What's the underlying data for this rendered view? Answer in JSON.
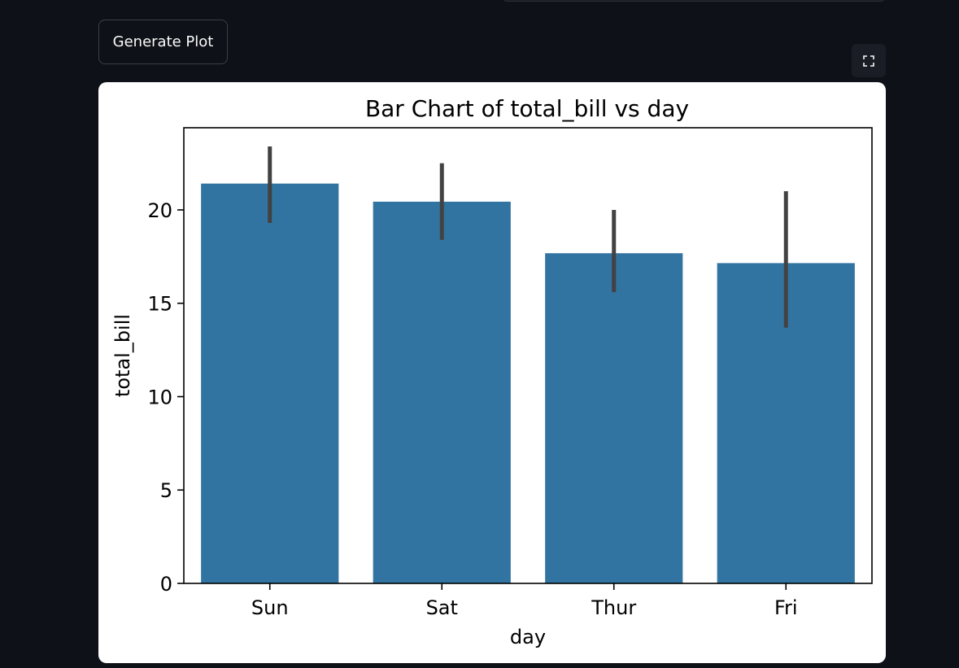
{
  "toolbar": {
    "generate_label": "Generate Plot"
  },
  "icons": {
    "fullscreen": "fullscreen-icon"
  },
  "colors": {
    "bar": "#3274a1",
    "error_bar": "#424242",
    "background": "#0e1117"
  },
  "chart_data": {
    "type": "bar",
    "title": "Bar Chart of total_bill vs day",
    "xlabel": "day",
    "ylabel": "total_bill",
    "categories": [
      "Sun",
      "Sat",
      "Thur",
      "Fri"
    ],
    "values": [
      21.41,
      20.44,
      17.68,
      17.15
    ],
    "error_low": [
      19.3,
      18.4,
      15.6,
      13.7
    ],
    "error_high": [
      23.4,
      22.5,
      20.0,
      21.0
    ],
    "yticks": [
      0,
      5,
      10,
      15,
      20
    ],
    "ylim": [
      0,
      24.4
    ],
    "grid": false
  }
}
